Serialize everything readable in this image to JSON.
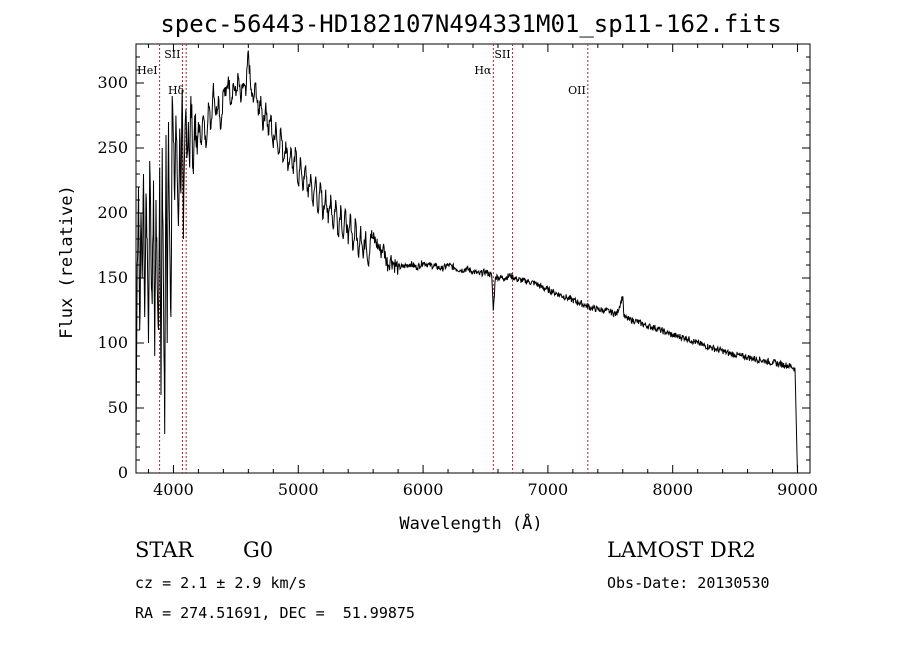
{
  "chart_data": {
    "type": "line",
    "title": "spec-56443-HD182107N494331M01_sp11-162.fits",
    "xlabel": "Wavelength (Å)",
    "ylabel": "Flux (relative)",
    "xlim": [
      3700,
      9100
    ],
    "ylim": [
      0,
      330
    ],
    "xticks": [
      "4000",
      "5000",
      "6000",
      "7000",
      "8000",
      "9000"
    ],
    "yticks": [
      "0",
      "50",
      "100",
      "150",
      "200",
      "250",
      "300"
    ],
    "grid": false,
    "series": [
      {
        "x": [
          3700,
          3710,
          3720,
          3730,
          3740,
          3750,
          3760,
          3770,
          3780,
          3790,
          3800,
          3810,
          3820,
          3830,
          3840,
          3850,
          3860,
          3870,
          3880,
          3890,
          3900,
          3910,
          3920,
          3930,
          3940,
          3950,
          3960,
          3970,
          3980,
          3990,
          4000,
          4010,
          4020,
          4030,
          4040,
          4050,
          4060,
          4070,
          4080,
          4090,
          4100,
          4110,
          4120,
          4130,
          4140,
          4150,
          4160,
          4170,
          4180,
          4190,
          4200,
          4220,
          4240,
          4260,
          4280,
          4300,
          4320,
          4340,
          4360,
          4380,
          4400,
          4420,
          4440,
          4460,
          4480,
          4500,
          4520,
          4540,
          4560,
          4580,
          4600,
          4620,
          4640,
          4660,
          4680,
          4700,
          4720,
          4740,
          4760,
          4780,
          4800,
          4820,
          4840,
          4860,
          4880,
          4900,
          4920,
          4940,
          4960,
          4980,
          5000,
          5020,
          5040,
          5060,
          5080,
          5100,
          5120,
          5140,
          5160,
          5180,
          5200,
          5220,
          5240,
          5260,
          5280,
          5300,
          5320,
          5340,
          5360,
          5380,
          5400,
          5420,
          5440,
          5460,
          5480,
          5500,
          5520,
          5540,
          5560,
          5580,
          5600,
          5620,
          5640,
          5660,
          5680,
          5700,
          5720,
          5740,
          5760,
          5780,
          5800,
          5850,
          5900,
          5950,
          6000,
          6050,
          6100,
          6150,
          6200,
          6250,
          6300,
          6350,
          6400,
          6450,
          6500,
          6550,
          6563,
          6580,
          6650,
          6700,
          6750,
          6800,
          6850,
          6900,
          6950,
          7000,
          7050,
          7100,
          7150,
          7200,
          7250,
          7300,
          7350,
          7400,
          7450,
          7500,
          7550,
          7600,
          7610,
          7650,
          7700,
          7750,
          7800,
          7850,
          7900,
          7950,
          8000,
          8050,
          8100,
          8150,
          8200,
          8250,
          8300,
          8350,
          8400,
          8450,
          8500,
          8550,
          8600,
          8650,
          8700,
          8750,
          8800,
          8850,
          8900,
          8950,
          8980,
          9000
        ],
        "y": [
          20,
          160,
          220,
          110,
          200,
          150,
          230,
          120,
          215,
          180,
          100,
          240,
          165,
          130,
          225,
          90,
          210,
          145,
          110,
          235,
          60,
          250,
          140,
          30,
          260,
          100,
          270,
          180,
          120,
          290,
          255,
          210,
          275,
          230,
          190,
          265,
          215,
          295,
          180,
          250,
          280,
          245,
          270,
          235,
          290,
          260,
          230,
          275,
          255,
          245,
          270,
          255,
          275,
          250,
          285,
          265,
          300,
          275,
          290,
          265,
          295,
          290,
          305,
          285,
          300,
          290,
          305,
          285,
          300,
          290,
          325,
          295,
          285,
          300,
          275,
          290,
          265,
          285,
          260,
          275,
          250,
          270,
          245,
          265,
          240,
          255,
          235,
          250,
          230,
          248,
          222,
          240,
          218,
          236,
          212,
          230,
          205,
          228,
          200,
          222,
          196,
          218,
          192,
          214,
          188,
          210,
          184,
          206,
          180,
          202,
          176,
          198,
          172,
          194,
          168,
          190,
          165,
          186,
          160,
          184,
          180,
          178,
          175,
          170,
          174,
          166,
          160,
          165,
          162,
          160,
          158,
          159,
          161,
          158,
          162,
          160,
          159,
          157,
          160,
          158,
          156,
          157,
          155,
          153,
          155,
          152,
          125,
          151,
          150,
          152,
          149,
          148,
          147,
          146,
          143,
          141,
          139,
          137,
          135,
          133,
          131,
          129,
          127,
          126,
          125,
          124,
          122,
          136,
          120,
          118,
          117,
          115,
          113,
          112,
          110,
          108,
          106,
          105,
          104,
          102,
          100,
          98,
          97,
          95,
          94,
          92,
          91,
          90,
          89,
          88,
          87,
          86,
          85,
          84,
          83,
          82,
          80,
          0
        ]
      }
    ],
    "lines": [
      {
        "name": "HeI",
        "x": 3889
      },
      {
        "name": "Hδ",
        "x": 4102
      },
      {
        "name": "SII",
        "x": 4072
      },
      {
        "name": "Hα",
        "x": 6563
      },
      {
        "name": "SII",
        "x": 6717
      },
      {
        "name": "OII",
        "x": 7320
      }
    ]
  },
  "info": {
    "class": "STAR",
    "subclass": "G0",
    "survey": "LAMOST DR2",
    "cz": "cz = 2.1 ± 2.9 km/s",
    "obs_date": "Obs-Date: 20130530",
    "coords": "RA = 274.51691, DEC =  51.99875"
  }
}
